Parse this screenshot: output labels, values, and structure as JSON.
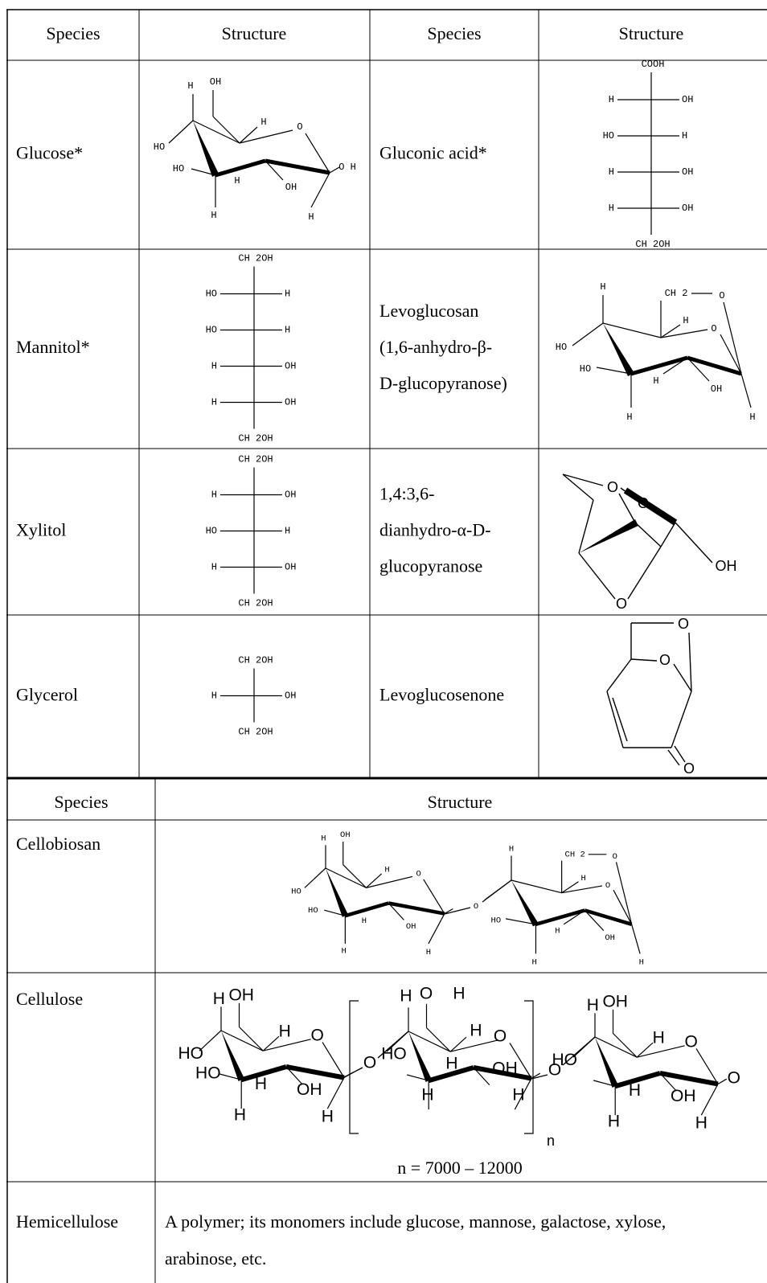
{
  "table1": {
    "header": [
      "Species",
      "Structure",
      "Species",
      "Structure"
    ],
    "rows": [
      {
        "left": {
          "species": [
            "Glucose*"
          ],
          "structure": {
            "kind": "pyranose",
            "labels": [
              "H",
              "OH",
              "H",
              "O",
              "HO",
              "HO",
              "H",
              "OH",
              "O H",
              "H",
              "H"
            ]
          }
        },
        "right": {
          "species": [
            "Gluconic acid*"
          ],
          "structure": {
            "kind": "fischer",
            "top": "COOH",
            "rows": [
              [
                "H",
                "OH"
              ],
              [
                "HO",
                "H"
              ],
              [
                "H",
                "OH"
              ],
              [
                "H",
                "OH"
              ]
            ],
            "bottom": "CH 2OH"
          }
        }
      },
      {
        "left": {
          "species": [
            "Mannitol*"
          ],
          "structure": {
            "kind": "fischer",
            "top": "CH 2OH",
            "rows": [
              [
                "HO",
                "H"
              ],
              [
                "HO",
                "H"
              ],
              [
                "H",
                "OH"
              ],
              [
                "H",
                "OH"
              ]
            ],
            "bottom": "CH 2OH"
          }
        },
        "right": {
          "species": [
            "Levoglucosan",
            "(1,6-anhydro-β-",
            "D-glucopyranose)"
          ],
          "structure": {
            "kind": "anhydro",
            "labels": [
              "H",
              "CH 2",
              "O",
              "H",
              "O",
              "HO",
              "HO",
              "H",
              "OH",
              "H",
              "H"
            ]
          }
        }
      },
      {
        "left": {
          "species": [
            "Xylitol"
          ],
          "structure": {
            "kind": "fischer",
            "top": "CH 2OH",
            "rows": [
              [
                "H",
                "OH"
              ],
              [
                "HO",
                "H"
              ],
              [
                "H",
                "OH"
              ]
            ],
            "bottom": "CH 2OH"
          }
        },
        "right": {
          "species": [
            "1,4:3,6-",
            "dianhydro-α-D-",
            "glucopyranose"
          ],
          "structure": {
            "kind": "dianhydro",
            "labels": [
              "O",
              "O",
              "O",
              "OH"
            ]
          }
        }
      },
      {
        "left": {
          "species": [
            "Glycerol"
          ],
          "structure": {
            "kind": "fischer",
            "top": "CH 2OH",
            "rows": [
              [
                "H",
                "OH"
              ]
            ],
            "bottom": "CH 2OH"
          }
        },
        "right": {
          "species": [
            "Levoglucosenone"
          ],
          "structure": {
            "kind": "levoglucosenone",
            "labels": [
              "O",
              "O",
              "O"
            ]
          }
        }
      }
    ]
  },
  "table2": {
    "header": [
      "Species",
      "Structure"
    ],
    "rows": [
      {
        "species": "Cellobiosan",
        "structure": {
          "kind": "cellobiosan",
          "units": [
            [
              "H",
              "OH",
              "H",
              "O",
              "HO",
              "HO",
              "H",
              "OH",
              "H",
              "H"
            ],
            [
              "H",
              "CH 2",
              "O",
              "H",
              "O",
              "HO",
              "H",
              "OH",
              "H",
              "H"
            ]
          ],
          "links": [
            "O"
          ]
        }
      },
      {
        "species": "Cellulose",
        "structure": {
          "kind": "cellulose",
          "units": [
            [
              "H",
              "OH",
              "H",
              "O",
              "HO",
              "HO",
              "H",
              "OH",
              "H",
              "H"
            ],
            [
              "H",
              "O",
              "H",
              "H",
              "O",
              "HO",
              "H",
              "OH",
              "H",
              "H"
            ],
            [
              "H",
              "OH",
              "H",
              "O",
              "HO",
              "H",
              "OH",
              "O",
              "H",
              "H"
            ]
          ],
          "links": [
            "O",
            "O"
          ],
          "repeat": "n",
          "caption": "n = 7000 – 12000"
        }
      },
      {
        "species": "Hemicellulose",
        "description": [
          "A polymer; its monomers include glucose, mannose, galactose, xylose,",
          "arabinose, etc."
        ]
      }
    ]
  }
}
